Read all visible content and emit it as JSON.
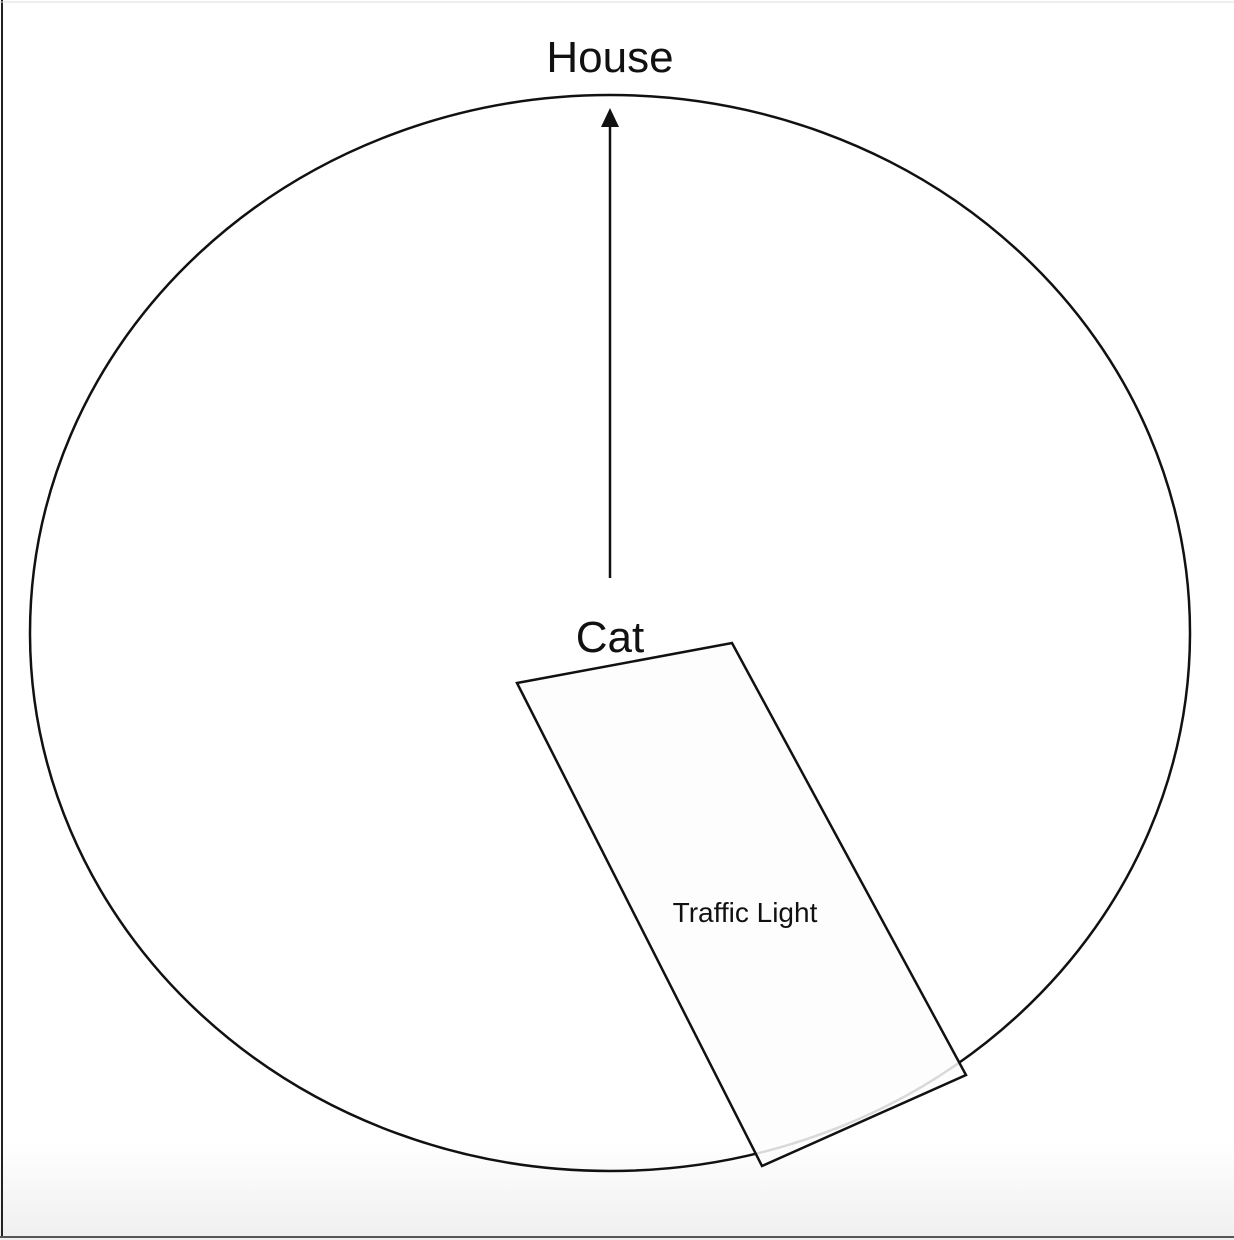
{
  "diagram": {
    "nodes": {
      "top": {
        "label": "House"
      },
      "center": {
        "label": "Cat"
      },
      "box": {
        "label": "Traffic Light"
      }
    },
    "edges": [
      {
        "from": "center",
        "to": "top",
        "directed": true
      }
    ],
    "colors": {
      "stroke": "#111111",
      "box_fill": "#fdfdfd",
      "background": "#ffffff"
    }
  }
}
